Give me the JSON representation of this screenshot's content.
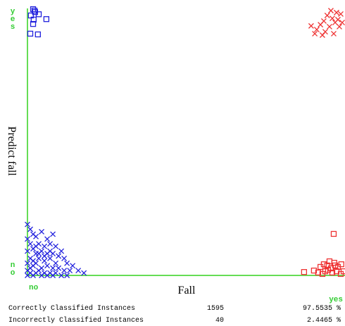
{
  "chart_data": {
    "type": "scatter",
    "x_label": "Fall",
    "y_label": "Predict fall",
    "xlim": [
      0,
      1.125
    ],
    "ylim": [
      0,
      1.1
    ],
    "xticks": [
      {
        "value": 0,
        "label": "no"
      },
      {
        "value": 1,
        "label": "yes"
      }
    ],
    "yticks": [
      {
        "value": 0,
        "label": "no"
      },
      {
        "value": 1,
        "label": "yes"
      }
    ],
    "series": [
      {
        "color": "#2222dd",
        "marker": "x",
        "x": [
          0.0,
          0.01,
          0.02,
          0.0,
          0.03,
          0.05,
          0.09,
          0.07,
          0.01,
          0.04,
          0.06,
          0.08,
          0.1,
          0.12,
          0.02,
          0.0,
          0.03,
          0.05,
          0.07,
          0.09,
          0.11,
          0.13,
          0.01,
          0.04,
          0.06,
          0.08,
          0.1,
          0.14,
          0.16,
          0.0,
          0.02,
          0.03,
          0.05,
          0.07,
          0.09,
          0.11,
          0.13,
          0.15,
          0.18,
          0.2,
          0.0,
          0.01,
          0.03,
          0.04,
          0.06,
          0.08,
          0.1,
          0.12,
          0.14,
          0.02,
          0.05,
          0.07,
          0.09,
          0.0,
          0.01,
          0.02,
          0.04,
          0.06,
          0.08,
          0.03
        ],
        "values": [
          0.21,
          0.19,
          0.17,
          0.15,
          0.16,
          0.18,
          0.17,
          0.15,
          0.13,
          0.13,
          0.12,
          0.13,
          0.12,
          0.1,
          0.11,
          0.1,
          0.09,
          0.1,
          0.09,
          0.09,
          0.08,
          0.07,
          0.07,
          0.07,
          0.06,
          0.07,
          0.05,
          0.05,
          0.04,
          0.05,
          0.04,
          0.05,
          0.03,
          0.04,
          0.03,
          0.03,
          0.02,
          0.02,
          0.02,
          0.01,
          0.02,
          0.01,
          0.01,
          0.02,
          0.01,
          0.01,
          0.01,
          0.0,
          0.0,
          0.0,
          0.0,
          0.0,
          0.0,
          0.0,
          0.03,
          0.06,
          0.09,
          0.08,
          0.1,
          0.12
        ]
      },
      {
        "color": "#2222dd",
        "marker": "square",
        "x": [
          0.02,
          0.027,
          0.04,
          0.012,
          0.067,
          0.022,
          0.02,
          0.01,
          0.037,
          0.025
        ],
        "values": [
          1.097,
          1.085,
          1.076,
          1.071,
          1.056,
          1.054,
          1.036,
          0.996,
          0.993,
          1.091
        ]
      },
      {
        "color": "#ee3333",
        "marker": "x",
        "x": [
          1.075,
          1.095,
          1.062,
          1.11,
          1.08,
          1.05,
          1.09,
          1.038,
          1.07,
          1.105,
          1.005,
          1.025,
          1.055,
          1.085,
          1.045,
          1.018,
          1.1,
          1.115
        ],
        "values": [
          1.091,
          1.083,
          1.071,
          1.077,
          1.059,
          1.048,
          1.042,
          1.033,
          1.025,
          1.025,
          1.028,
          1.013,
          1.004,
          0.996,
          0.99,
          0.996,
          1.054,
          1.042
        ]
      },
      {
        "color": "#ee3333",
        "marker": "square",
        "x": [
          1.085,
          0.98,
          1.015,
          1.038,
          1.05,
          1.062,
          1.075,
          1.087,
          1.1,
          1.112,
          1.03,
          1.055,
          1.08,
          1.095,
          1.12,
          1.07,
          1.045,
          1.11,
          1.09,
          1.065
        ],
        "values": [
          0.171,
          0.014,
          0.02,
          0.035,
          0.046,
          0.041,
          0.029,
          0.052,
          0.035,
          0.046,
          0.012,
          0.017,
          0.012,
          0.017,
          0.017,
          0.058,
          0.006,
          0.006,
          0.041,
          0.023
        ]
      }
    ],
    "axis_color": "#66dd55"
  },
  "summary": {
    "rows": [
      [
        "Correctly Classified Instances",
        "1595",
        "97.5535 %"
      ],
      [
        "Incorrectly Classified Instances",
        "40",
        "2.4465 %"
      ]
    ]
  }
}
